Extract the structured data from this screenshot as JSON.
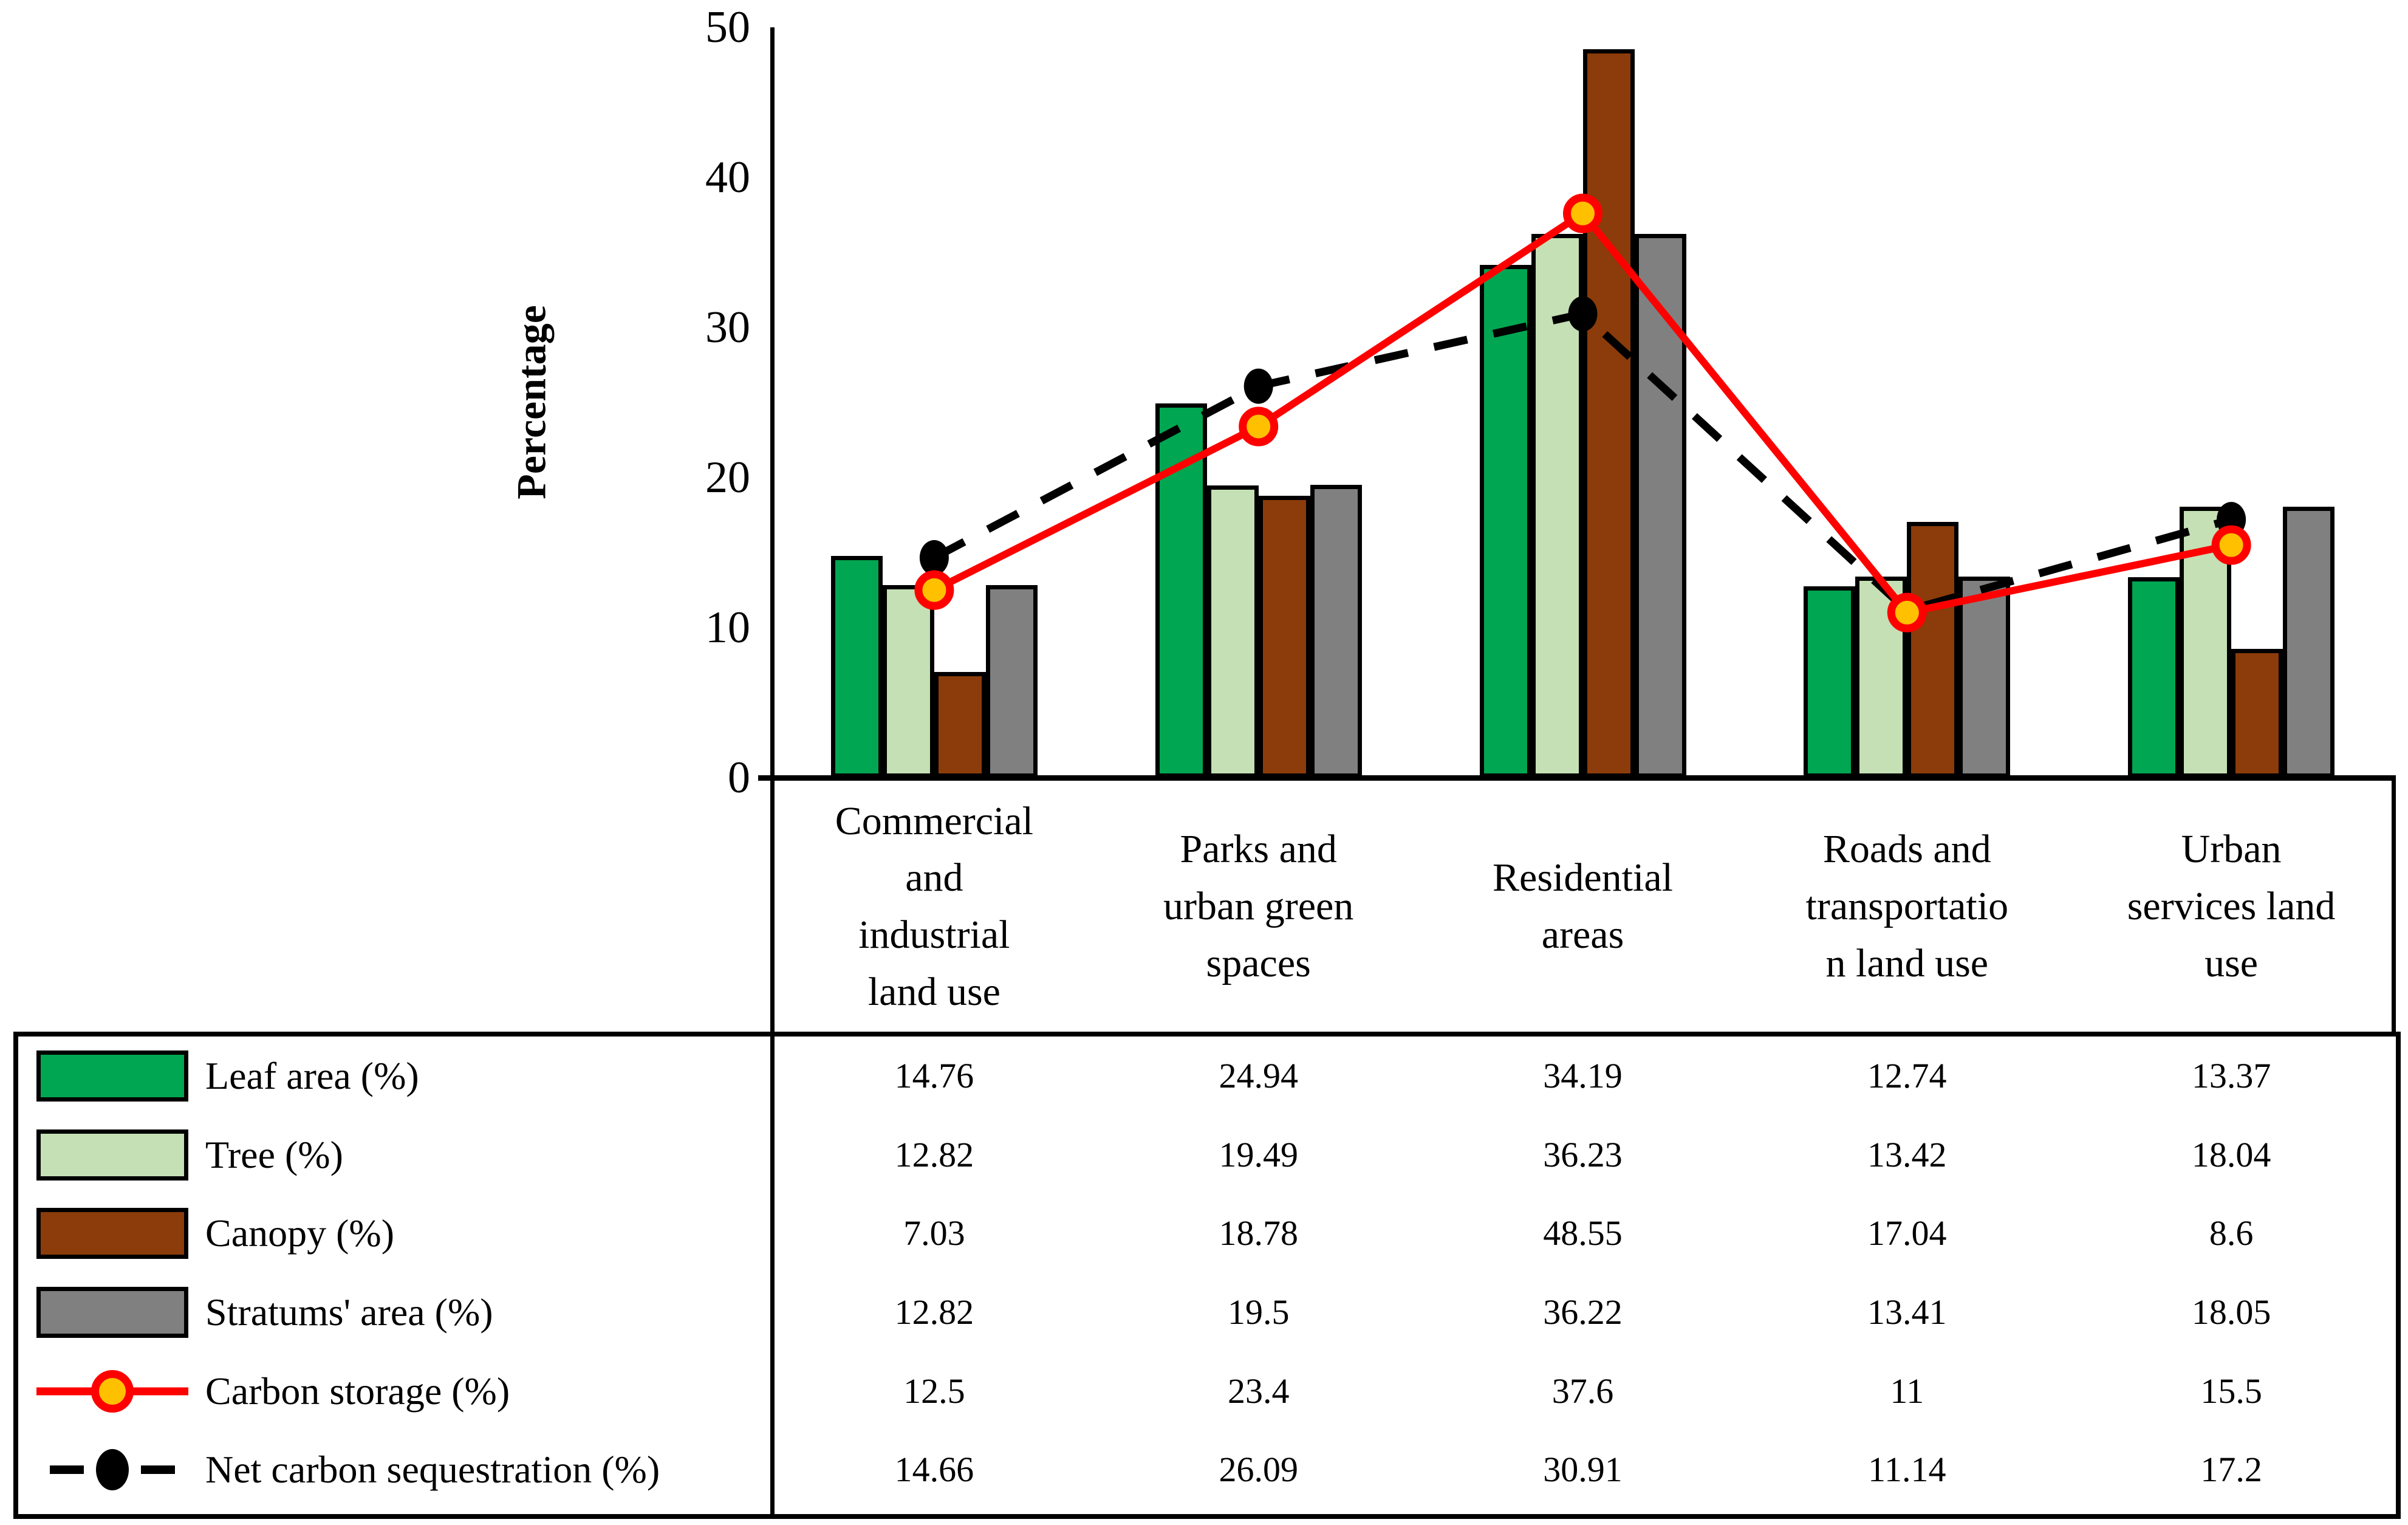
{
  "chart_data": {
    "type": "combo-bar-line",
    "title": "",
    "ylabel": "Percentage",
    "xlabel": "",
    "ylim": [
      0,
      50
    ],
    "y_ticks": [
      0,
      10,
      20,
      30,
      40,
      50
    ],
    "grid": false,
    "legend_position": "table-left",
    "categories": [
      "Commercial and industrial land use",
      "Parks and urban green spaces",
      "Residential areas",
      "Roads and transportation land use",
      "Urban services land use"
    ],
    "category_display_lines": [
      [
        "Commercial",
        "and",
        "industrial",
        "land use"
      ],
      [
        "Parks and",
        "urban green",
        "spaces"
      ],
      [
        "Residential",
        "areas"
      ],
      [
        "Roads and",
        "transportatio",
        "n land use"
      ],
      [
        "Urban",
        "services land",
        "use"
      ]
    ],
    "series": [
      {
        "name": "Leaf area (%)",
        "type": "bar",
        "color": "#00A651",
        "values": [
          14.76,
          24.94,
          34.19,
          12.74,
          13.37
        ]
      },
      {
        "name": "Tree (%)",
        "type": "bar",
        "color": "#C5E0B4",
        "values": [
          12.82,
          19.49,
          36.23,
          13.42,
          18.04
        ]
      },
      {
        "name": "Canopy (%)",
        "type": "bar",
        "color": "#8B3C0A",
        "values": [
          7.03,
          18.78,
          48.55,
          17.04,
          8.6
        ]
      },
      {
        "name": "Stratums' area (%)",
        "type": "bar",
        "color": "#808080",
        "values": [
          12.82,
          19.5,
          36.22,
          13.41,
          18.05
        ]
      },
      {
        "name": "Carbon storage (%)",
        "type": "line",
        "line_color": "#FF0000",
        "marker_fill": "#FFC000",
        "marker_stroke": "#FF0000",
        "values": [
          12.5,
          23.4,
          37.6,
          11,
          15.5
        ]
      },
      {
        "name": "Net carbon sequestration (%)",
        "type": "dashed-line",
        "line_color": "#000000",
        "marker_fill": "#000000",
        "values": [
          14.66,
          26.09,
          30.91,
          11.14,
          17.2
        ]
      }
    ]
  }
}
